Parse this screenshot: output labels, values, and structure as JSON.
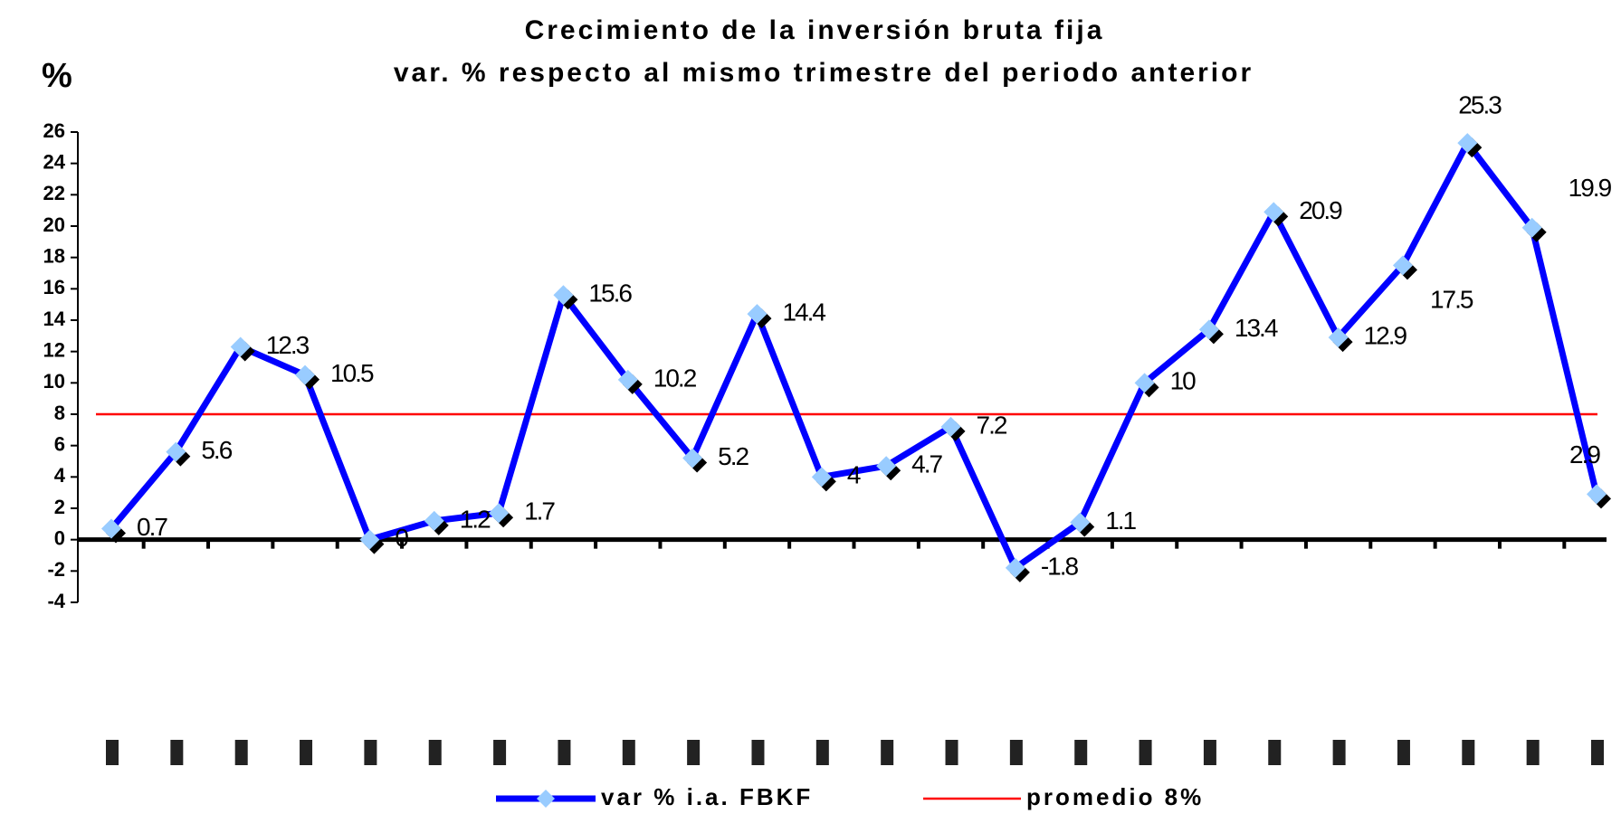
{
  "chart_data": {
    "type": "line",
    "title": "Crecimiento de la inversión bruta fija",
    "subtitle": "var. % respecto al mismo trimestre del periodo anterior",
    "y_label": "%",
    "categories": [
      null,
      null,
      null,
      null,
      null,
      null,
      null,
      null,
      null,
      null,
      null,
      null,
      null,
      null,
      null,
      null,
      null,
      null,
      null,
      null,
      null,
      null,
      null,
      null
    ],
    "series": [
      {
        "name": "var % i.a. FBKF",
        "color": "#0000ff",
        "marker_color": "#99ccff",
        "values": [
          0.7,
          5.6,
          12.3,
          10.5,
          0,
          1.2,
          1.7,
          15.6,
          10.2,
          5.2,
          14.4,
          4,
          4.7,
          7.2,
          -1.8,
          1.1,
          10,
          13.4,
          20.9,
          12.9,
          17.5,
          25.3,
          19.9,
          2.9
        ]
      }
    ],
    "reference_line": {
      "name": "promedio 8%",
      "value": 8,
      "color": "#ff0000"
    },
    "ylim": [
      -4,
      26
    ],
    "yticks": [
      -4,
      -2,
      0,
      2,
      4,
      6,
      8,
      10,
      12,
      14,
      16,
      18,
      20,
      22,
      24,
      26
    ],
    "grid": false
  }
}
